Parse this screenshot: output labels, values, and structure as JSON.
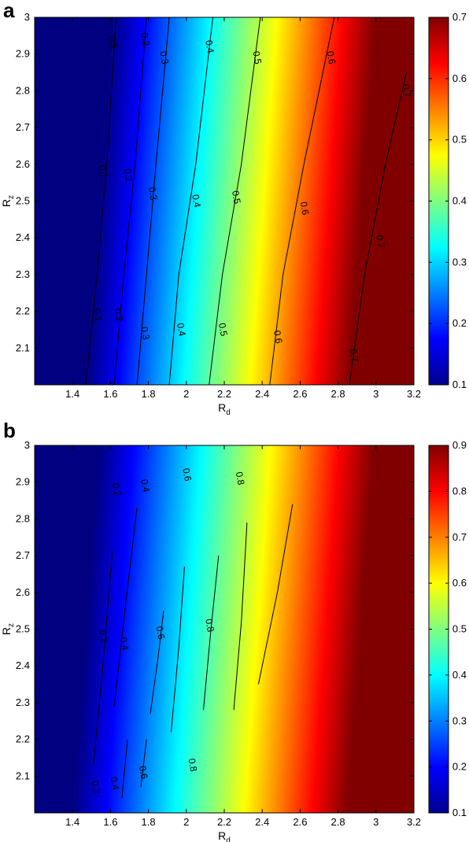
{
  "chart_data": [
    {
      "type": "heatmap",
      "panel_label": "a",
      "xlabel": "R",
      "xlabel_sub": "d",
      "ylabel": "R",
      "ylabel_sub": "z",
      "xlim": [
        1.2,
        3.2
      ],
      "ylim": [
        2.0,
        3.0
      ],
      "x_ticks": [
        "1.4",
        "1.6",
        "1.8",
        "2",
        "2.2",
        "2.4",
        "2.6",
        "2.8",
        "3",
        "3.2"
      ],
      "y_ticks": [
        "2.1",
        "2.2",
        "2.3",
        "2.4",
        "2.5",
        "2.6",
        "2.7",
        "2.8",
        "2.9",
        "3"
      ],
      "colorbar_range": [
        0.1,
        0.7
      ],
      "colorbar_ticks": [
        "0.1",
        "0.2",
        "0.3",
        "0.4",
        "0.5",
        "0.6",
        "0.7"
      ],
      "colormap": "jet",
      "contours": [
        {
          "level": "0.1",
          "points": [
            [
              1.47,
              2.0
            ],
            [
              1.53,
              2.3
            ],
            [
              1.58,
              2.6
            ],
            [
              1.63,
              3.0
            ]
          ],
          "labels": [
            [
              1.53,
              2.19
            ],
            [
              1.56,
              2.58
            ],
            [
              1.61,
              2.93
            ]
          ]
        },
        {
          "level": "0.2",
          "points": [
            [
              1.62,
              2.0
            ],
            [
              1.67,
              2.3
            ],
            [
              1.73,
              2.6
            ],
            [
              1.79,
              3.0
            ]
          ],
          "labels": [
            [
              1.64,
              2.19
            ],
            [
              1.69,
              2.57
            ],
            [
              1.78,
              2.94
            ]
          ]
        },
        {
          "level": "0.3",
          "points": [
            [
              1.74,
              2.0
            ],
            [
              1.79,
              2.3
            ],
            [
              1.84,
              2.6
            ],
            [
              1.91,
              3.0
            ]
          ],
          "labels": [
            [
              1.78,
              2.14
            ],
            [
              1.82,
              2.52
            ],
            [
              1.88,
              2.89
            ]
          ]
        },
        {
          "level": "0.4",
          "points": [
            [
              1.91,
              2.0
            ],
            [
              1.96,
              2.3
            ],
            [
              2.05,
              2.6
            ],
            [
              2.14,
              3.0
            ]
          ],
          "labels": [
            [
              1.97,
              2.15
            ],
            [
              2.05,
              2.5
            ],
            [
              2.12,
              2.92
            ]
          ]
        },
        {
          "level": "0.5",
          "points": [
            [
              2.12,
              2.0
            ],
            [
              2.19,
              2.3
            ],
            [
              2.29,
              2.6
            ],
            [
              2.39,
              3.0
            ]
          ],
          "labels": [
            [
              2.19,
              2.15
            ],
            [
              2.26,
              2.51
            ],
            [
              2.37,
              2.89
            ]
          ]
        },
        {
          "level": "0.6",
          "points": [
            [
              2.44,
              2.0
            ],
            [
              2.51,
              2.3
            ],
            [
              2.62,
              2.6
            ],
            [
              2.78,
              3.0
            ]
          ],
          "labels": [
            [
              2.48,
              2.13
            ],
            [
              2.62,
              2.48
            ],
            [
              2.76,
              2.89
            ]
          ]
        },
        {
          "level": "0.7",
          "points": [
            [
              2.86,
              2.0
            ],
            [
              2.94,
              2.3
            ],
            [
              3.05,
              2.6
            ],
            [
              3.16,
              2.85
            ]
          ],
          "labels": [
            [
              2.88,
              2.08
            ],
            [
              3.02,
              2.39
            ],
            [
              3.16,
              2.8
            ]
          ]
        }
      ]
    },
    {
      "type": "heatmap",
      "panel_label": "b",
      "xlabel": "R",
      "xlabel_sub": "d",
      "ylabel": "R",
      "ylabel_sub": "z",
      "xlim": [
        1.2,
        3.2
      ],
      "ylim": [
        2.0,
        3.0
      ],
      "x_ticks": [
        "1.4",
        "1.6",
        "1.8",
        "2",
        "2.2",
        "2.4",
        "2.6",
        "2.8",
        "3",
        "3.2"
      ],
      "y_ticks": [
        "2.1",
        "2.2",
        "2.3",
        "2.4",
        "2.5",
        "2.6",
        "2.7",
        "2.8",
        "2.9",
        "3"
      ],
      "colorbar_range": [
        0.1,
        0.9
      ],
      "colorbar_ticks": [
        "0.1",
        "0.2",
        "0.3",
        "0.4",
        "0.5",
        "0.6",
        "0.7",
        "0.8",
        "0.9"
      ],
      "colormap": "jet",
      "contours": [
        {
          "level": "0.2",
          "points": [
            [
              1.51,
              2.13
            ],
            [
              1.56,
              2.4
            ],
            [
              1.61,
              2.71
            ]
          ],
          "labels": [
            [
              1.52,
              2.07
            ],
            [
              1.56,
              2.48
            ],
            [
              1.63,
              2.88
            ]
          ]
        },
        {
          "level": "0.4",
          "points": [
            [
              1.62,
              2.29
            ],
            [
              1.68,
              2.57
            ],
            [
              1.74,
              2.83
            ]
          ],
          "labels": [
            [
              1.62,
              2.08
            ],
            [
              1.67,
              2.46
            ],
            [
              1.78,
              2.89
            ]
          ]
        },
        {
          "level": "0.4",
          "points": [
            [
              1.66,
              2.04
            ],
            [
              1.69,
              2.2
            ]
          ],
          "labels": []
        },
        {
          "level": "0.6",
          "points": [
            [
              1.76,
              2.07
            ],
            [
              1.79,
              2.2
            ]
          ],
          "labels": [
            [
              1.77,
              2.11
            ],
            [
              1.86,
              2.49
            ],
            [
              2.0,
              2.92
            ]
          ]
        },
        {
          "level": "0.6",
          "points": [
            [
              1.81,
              2.27
            ],
            [
              1.85,
              2.42
            ],
            [
              1.88,
              2.55
            ]
          ],
          "labels": []
        },
        {
          "level": "0.6",
          "points": [
            [
              1.92,
              2.22
            ],
            [
              1.96,
              2.45
            ],
            [
              1.99,
              2.67
            ]
          ],
          "labels": []
        },
        {
          "level": "0.8",
          "points": [
            [
              2.09,
              2.28
            ],
            [
              2.13,
              2.5
            ],
            [
              2.17,
              2.7
            ]
          ],
          "labels": [
            [
              2.03,
              2.13
            ],
            [
              2.12,
              2.51
            ],
            [
              2.28,
              2.91
            ]
          ]
        },
        {
          "level": "0.8",
          "points": [
            [
              2.25,
              2.28
            ],
            [
              2.29,
              2.52
            ],
            [
              2.32,
              2.79
            ]
          ],
          "labels": []
        },
        {
          "level": "0.8",
          "points": [
            [
              2.38,
              2.35
            ],
            [
              2.48,
              2.6
            ],
            [
              2.56,
              2.84
            ]
          ],
          "labels": []
        }
      ]
    }
  ]
}
